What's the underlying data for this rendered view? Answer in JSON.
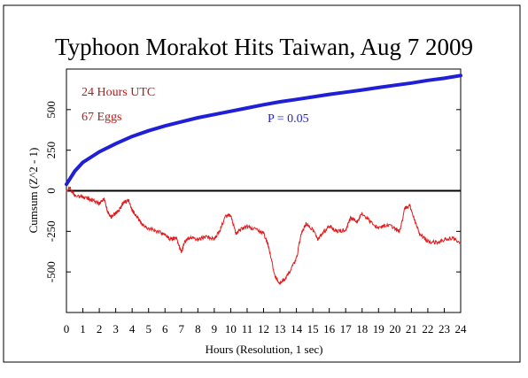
{
  "chart_data": {
    "type": "line",
    "title": "Typhoon Morakot Hits Taiwan, Aug 7 2009",
    "xlabel": "Hours (Resolution, 1 sec)",
    "ylabel": "Cumsum (Z^2 - 1)",
    "xlim": [
      0,
      24
    ],
    "ylim": [
      -750,
      750
    ],
    "x_ticks": [
      "0",
      "1",
      "2",
      "3",
      "4",
      "5",
      "6",
      "7",
      "8",
      "9",
      "10",
      "11",
      "12",
      "13",
      "14",
      "15",
      "16",
      "17",
      "18",
      "19",
      "20",
      "21",
      "22",
      "23",
      "24"
    ],
    "y_ticks": [
      -500,
      -250,
      0,
      250,
      500
    ],
    "annotations": {
      "hours": "24 Hours UTC",
      "eggs": "67 Eggs",
      "p": "P = 0.05"
    },
    "colors": {
      "cumsum": "#e31a1c",
      "probability": "#1f1fd6",
      "axis": "#000000",
      "title": "#000000"
    },
    "series": [
      {
        "name": "",
        "color": "#e31a1c",
        "points": [
          [
            0,
            0
          ],
          [
            0.2,
            20
          ],
          [
            0.5,
            -30
          ],
          [
            1,
            -40
          ],
          [
            1.3,
            -45
          ],
          [
            1.6,
            -60
          ],
          [
            2,
            -80
          ],
          [
            2.3,
            -50
          ],
          [
            2.5,
            -130
          ],
          [
            2.7,
            -160
          ],
          [
            3,
            -140
          ],
          [
            3.2,
            -120
          ],
          [
            3.5,
            -70
          ],
          [
            3.8,
            -60
          ],
          [
            4,
            -120
          ],
          [
            4.3,
            -160
          ],
          [
            4.6,
            -210
          ],
          [
            5,
            -230
          ],
          [
            5.5,
            -250
          ],
          [
            6,
            -270
          ],
          [
            6.3,
            -300
          ],
          [
            6.7,
            -290
          ],
          [
            7,
            -380
          ],
          [
            7.2,
            -310
          ],
          [
            7.5,
            -290
          ],
          [
            8,
            -300
          ],
          [
            8.5,
            -280
          ],
          [
            9,
            -300
          ],
          [
            9.3,
            -250
          ],
          [
            9.7,
            -160
          ],
          [
            10,
            -150
          ],
          [
            10.3,
            -260
          ],
          [
            10.6,
            -240
          ],
          [
            11,
            -220
          ],
          [
            11.5,
            -240
          ],
          [
            12,
            -260
          ],
          [
            12.3,
            -340
          ],
          [
            12.7,
            -530
          ],
          [
            13,
            -570
          ],
          [
            13.3,
            -540
          ],
          [
            13.6,
            -500
          ],
          [
            14,
            -420
          ],
          [
            14.3,
            -260
          ],
          [
            14.6,
            -200
          ],
          [
            15,
            -240
          ],
          [
            15.3,
            -300
          ],
          [
            15.6,
            -260
          ],
          [
            16,
            -220
          ],
          [
            16.5,
            -250
          ],
          [
            17,
            -240
          ],
          [
            17.3,
            -170
          ],
          [
            17.7,
            -190
          ],
          [
            18,
            -140
          ],
          [
            18.5,
            -190
          ],
          [
            19,
            -230
          ],
          [
            19.5,
            -210
          ],
          [
            20,
            -230
          ],
          [
            20.3,
            -250
          ],
          [
            20.6,
            -110
          ],
          [
            20.9,
            -90
          ],
          [
            21.2,
            -180
          ],
          [
            21.5,
            -270
          ],
          [
            22,
            -310
          ],
          [
            22.5,
            -320
          ],
          [
            23,
            -300
          ],
          [
            23.5,
            -290
          ],
          [
            24,
            -330
          ]
        ]
      },
      {
        "name": "",
        "color": "#1f1fd6",
        "points": [
          [
            0,
            40
          ],
          [
            0.5,
            120
          ],
          [
            1,
            175
          ],
          [
            2,
            240
          ],
          [
            3,
            290
          ],
          [
            4,
            335
          ],
          [
            5,
            370
          ],
          [
            6,
            400
          ],
          [
            7,
            425
          ],
          [
            8,
            450
          ],
          [
            9,
            470
          ],
          [
            10,
            490
          ],
          [
            11,
            510
          ],
          [
            12,
            530
          ],
          [
            13,
            548
          ],
          [
            14,
            563
          ],
          [
            15,
            578
          ],
          [
            16,
            594
          ],
          [
            17,
            607
          ],
          [
            18,
            621
          ],
          [
            19,
            636
          ],
          [
            20,
            650
          ],
          [
            21,
            664
          ],
          [
            22,
            680
          ],
          [
            23,
            693
          ],
          [
            24,
            710
          ]
        ]
      }
    ]
  }
}
